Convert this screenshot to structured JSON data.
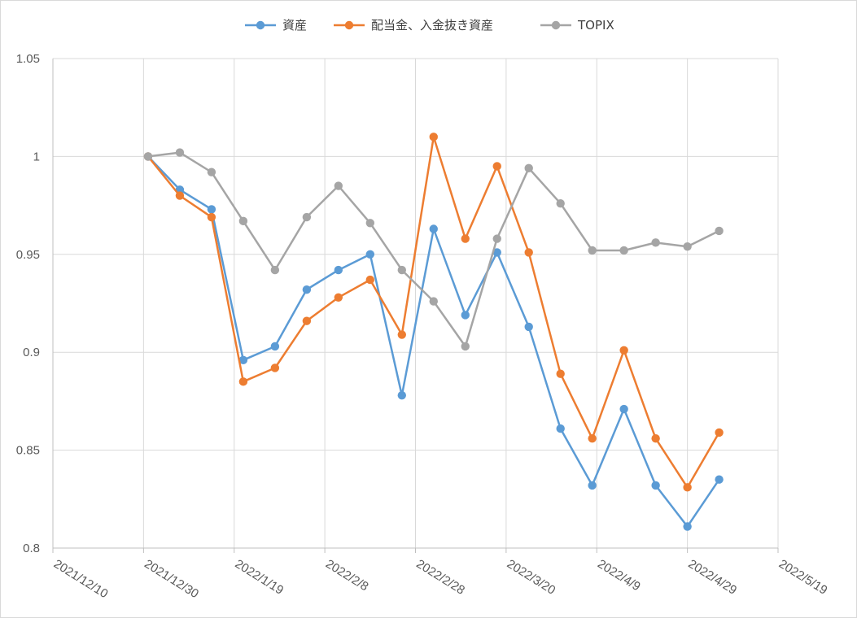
{
  "chart_data": {
    "type": "line",
    "title": "",
    "xlabel": "",
    "ylabel": "",
    "ylim": [
      0.8,
      1.05
    ],
    "xlim": [
      "2021-12-10",
      "2022-05-19"
    ],
    "x_ticks": [
      "2021/12/10",
      "2021/12/30",
      "2022/1/19",
      "2022/2/8",
      "2022/2/28",
      "2022/3/20",
      "2022/4/9",
      "2022/4/29",
      "2022/5/19"
    ],
    "y_ticks": [
      "0.8",
      "0.85",
      "0.9",
      "0.95",
      "1",
      "1.05"
    ],
    "grid": true,
    "legend_position": "top",
    "x": [
      "2021-12-31",
      "2022-01-07",
      "2022-01-14",
      "2022-01-21",
      "2022-01-28",
      "2022-02-04",
      "2022-02-11",
      "2022-02-18",
      "2022-02-25",
      "2022-03-04",
      "2022-03-11",
      "2022-03-18",
      "2022-03-25",
      "2022-04-01",
      "2022-04-08",
      "2022-04-15",
      "2022-04-22",
      "2022-04-29",
      "2022-05-06"
    ],
    "series": [
      {
        "name": "資産",
        "color": "#5b9bd5",
        "values": [
          1.0,
          0.983,
          0.973,
          0.896,
          0.903,
          0.932,
          0.942,
          0.95,
          0.878,
          0.963,
          0.919,
          0.951,
          0.913,
          0.861,
          0.832,
          0.871,
          0.832,
          0.811,
          0.835
        ]
      },
      {
        "name": "配当金、入金抜き資産",
        "color": "#ed7d31",
        "values": [
          1.0,
          0.98,
          0.969,
          0.885,
          0.892,
          0.916,
          0.928,
          0.937,
          0.909,
          1.01,
          0.958,
          0.995,
          0.951,
          0.889,
          0.856,
          0.901,
          0.856,
          0.831,
          0.859
        ]
      },
      {
        "name": "TOPIX",
        "color": "#a5a5a5",
        "values": [
          1.0,
          1.002,
          0.992,
          0.967,
          0.942,
          0.969,
          0.985,
          0.966,
          0.942,
          0.926,
          0.903,
          0.958,
          0.994,
          0.976,
          0.952,
          0.952,
          0.956,
          0.954,
          0.962
        ]
      }
    ]
  }
}
